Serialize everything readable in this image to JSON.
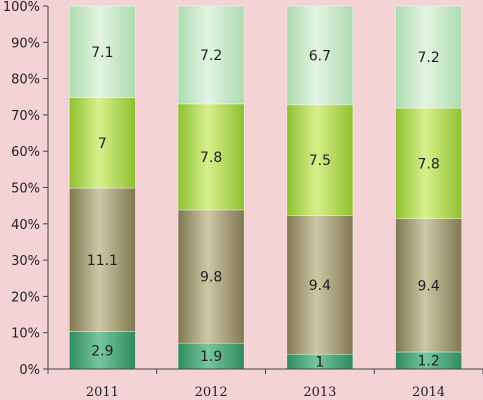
{
  "chart_data": {
    "type": "bar",
    "stacking": "percent",
    "categories": [
      "2011",
      "2012",
      "2013",
      "2014"
    ],
    "series": [
      {
        "values": [
          2.9,
          1.9,
          1,
          1.2
        ],
        "labels": [
          "2.9",
          "1.9",
          "1",
          "1.2"
        ],
        "color": "#4dae7e"
      },
      {
        "values": [
          11.1,
          9.8,
          9.4,
          9.4
        ],
        "labels": [
          "11.1",
          "9.8",
          "9.4",
          "9.4"
        ],
        "color": "#a8a179"
      },
      {
        "values": [
          7,
          7.8,
          7.5,
          7.8
        ],
        "labels": [
          "7",
          "7.8",
          "7.5",
          "7.8"
        ],
        "color": "#b3de59"
      },
      {
        "values": [
          7.1,
          7.2,
          6.7,
          7.2
        ],
        "labels": [
          "7.1",
          "7.2",
          "6.7",
          "7.2"
        ],
        "color": "#cbe8c9"
      }
    ],
    "yticks": [
      "0%",
      "10%",
      "20%",
      "30%",
      "40%",
      "50%",
      "60%",
      "70%",
      "80%",
      "90%",
      "100%"
    ],
    "ylim": [
      0,
      100
    ],
    "grid": false,
    "legend": "none"
  }
}
